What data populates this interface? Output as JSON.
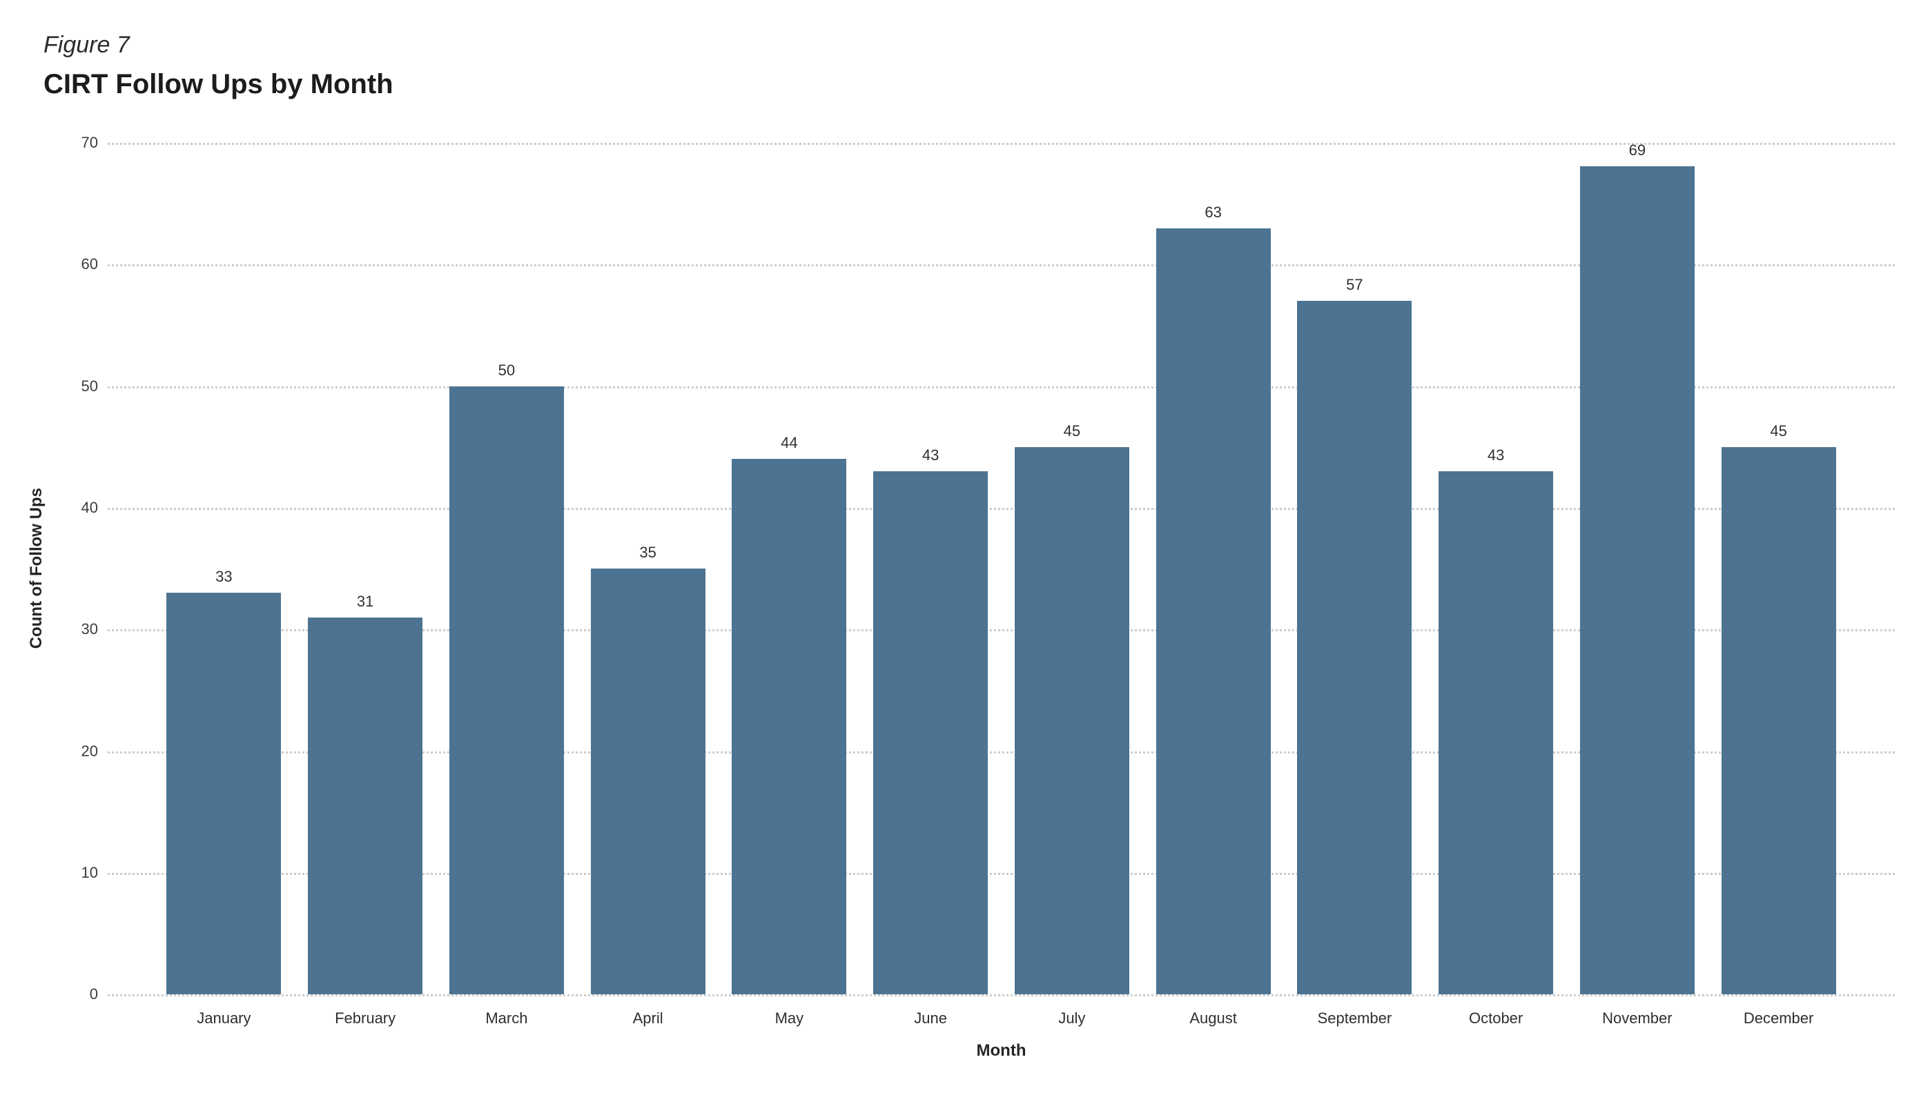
{
  "figure_label": "Figure 7",
  "title": "CIRT Follow Ups by Month",
  "chart_data": {
    "type": "bar",
    "title": "CIRT Follow Ups by Month",
    "categories": [
      "January",
      "February",
      "March",
      "April",
      "May",
      "June",
      "July",
      "August",
      "September",
      "October",
      "November",
      "December"
    ],
    "values": [
      33,
      31,
      50,
      35,
      44,
      43,
      45,
      63,
      57,
      43,
      69,
      45
    ],
    "xlabel": "Month",
    "ylabel": "Count of Follow Ups",
    "ylim": [
      0,
      70
    ],
    "yticks": [
      0,
      10,
      20,
      30,
      40,
      50,
      60,
      70
    ],
    "grid": "horizontal-dotted",
    "legend": "none",
    "value_labels": true,
    "colors": {
      "bar": "#4C7391",
      "gridline": "#cccccc",
      "text": "#252525"
    }
  }
}
